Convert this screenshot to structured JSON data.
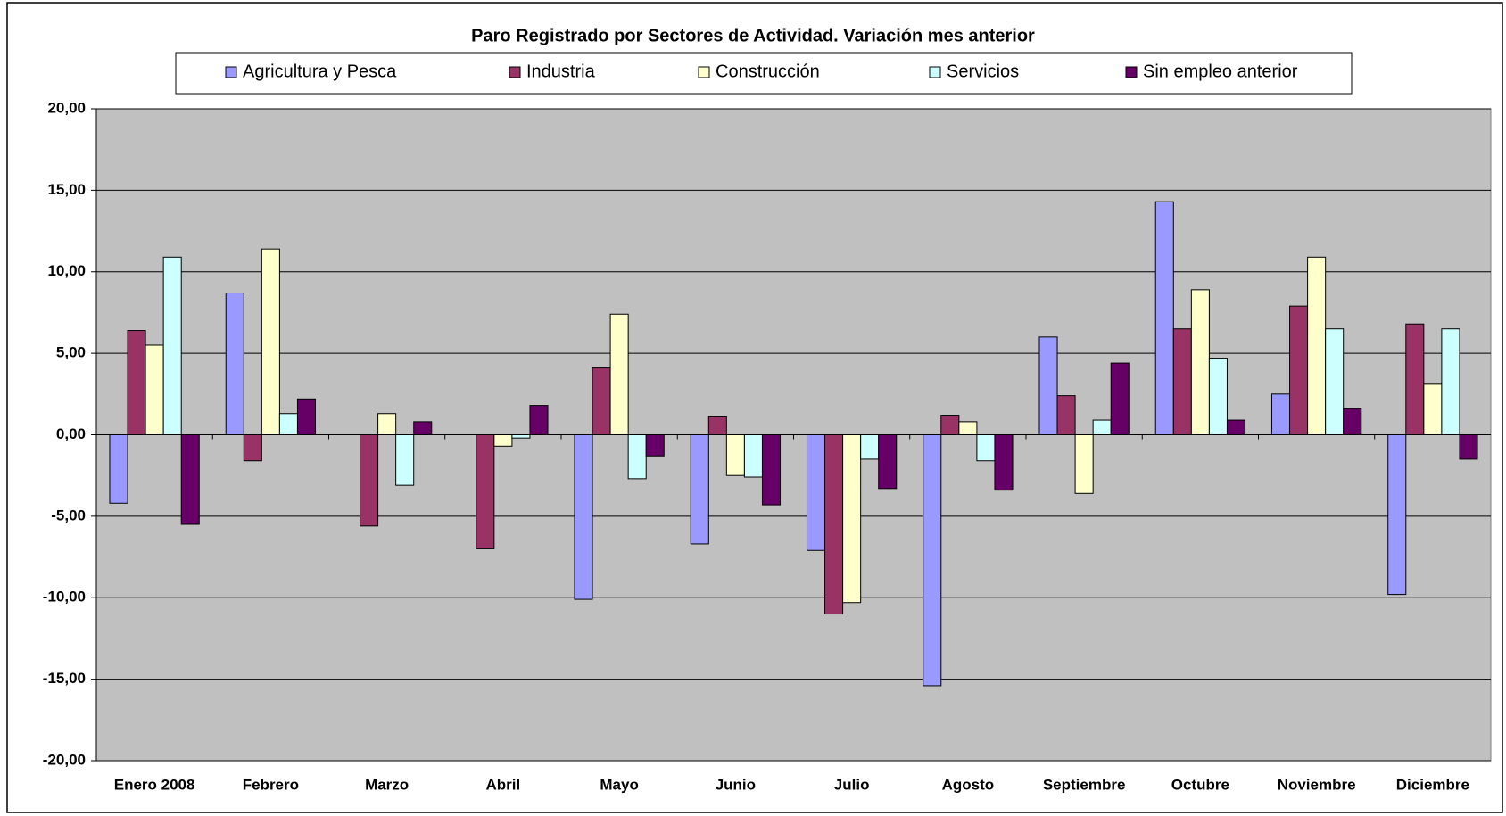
{
  "chart_data": {
    "type": "bar",
    "title": "Paro Registrado por Sectores de Actividad. Variación mes anterior",
    "categories": [
      "Enero 2008",
      "Febrero",
      "Marzo",
      "Abril",
      "Mayo",
      "Junio",
      "Julio",
      "Agosto",
      "Septiembre",
      "Octubre",
      "Noviembre",
      "Diciembre"
    ],
    "series": [
      {
        "name": "Agricultura y Pesca",
        "color": "#9999ff",
        "values": [
          -4.2,
          8.7,
          0,
          0,
          -10.1,
          -6.7,
          -7.1,
          -15.4,
          6.0,
          14.3,
          2.5,
          -9.8
        ]
      },
      {
        "name": "Industria",
        "color": "#993366",
        "values": [
          6.4,
          -1.6,
          -5.6,
          -7.0,
          4.1,
          1.1,
          -11.0,
          1.2,
          2.4,
          6.5,
          7.9,
          6.8
        ]
      },
      {
        "name": "Construcción",
        "color": "#ffffcc",
        "values": [
          5.5,
          11.4,
          1.3,
          -0.7,
          7.4,
          -2.5,
          -10.3,
          0.8,
          -3.6,
          8.9,
          10.9,
          3.1
        ]
      },
      {
        "name": "Servicios",
        "color": "#ccffff",
        "values": [
          10.9,
          1.3,
          -3.1,
          -0.2,
          -2.7,
          -2.6,
          -1.5,
          -1.6,
          0.9,
          4.7,
          6.5,
          6.5
        ]
      },
      {
        "name": "Sin empleo anterior",
        "color": "#660066",
        "values": [
          -5.5,
          2.2,
          0.8,
          1.8,
          -1.3,
          -4.3,
          -3.3,
          -3.4,
          4.4,
          0.9,
          1.6,
          -1.5
        ]
      }
    ],
    "ylim": [
      -20,
      20
    ],
    "yticks": [
      {
        "value": -20,
        "label": "-20,00"
      },
      {
        "value": -15,
        "label": "-15,00"
      },
      {
        "value": -10,
        "label": "-10,00"
      },
      {
        "value": -5,
        "label": "-5,00"
      },
      {
        "value": 0,
        "label": "0,00"
      },
      {
        "value": 5,
        "label": "5,00"
      },
      {
        "value": 10,
        "label": "10,00"
      },
      {
        "value": 15,
        "label": "15,00"
      },
      {
        "value": 20,
        "label": "20,00"
      }
    ],
    "grid": true,
    "legend": "top"
  }
}
